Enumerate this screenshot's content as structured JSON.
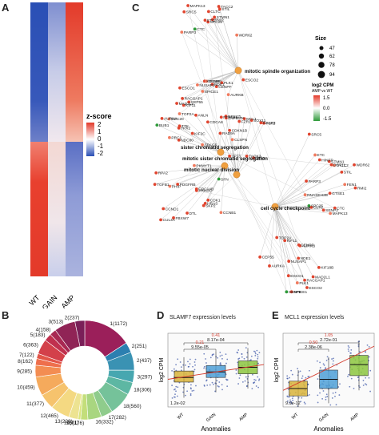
{
  "panels": {
    "A": "A",
    "B": "B",
    "C": "C",
    "D": "D",
    "E": "E"
  },
  "colors": {
    "high": "#e8392b",
    "low": "#2a4fb5",
    "mid": "#ffffff",
    "box_wt": "#d8b33a",
    "box_gain": "#4e9fd6",
    "box_amp": "#8cc63e",
    "trend": "#d33a2c",
    "node_edge": "#cccccc",
    "gene_node": "#e05a3c",
    "hub_node": "#f0a040"
  },
  "chart_data": [
    {
      "panel": "A",
      "type": "heatmap",
      "columns": [
        "WT",
        "GAIN",
        "AMP"
      ],
      "legend_title": "z-score",
      "legend_ticks": [
        "2",
        "1",
        "0",
        "-1",
        "-2"
      ],
      "upper_block": [
        "low",
        "mid",
        "high"
      ],
      "lower_block": [
        "high",
        "mid",
        "low"
      ]
    },
    {
      "panel": "B",
      "type": "pie",
      "labels": [
        "1(1172)",
        "2(251)",
        "2(437)",
        "3(297)",
        "18(306)",
        "18(560)",
        "17(282)",
        "16(332)",
        "15(176)",
        "14(61)",
        "13(228)",
        "12(465)",
        "11(377)",
        "10(459)",
        "9(285)",
        "8(162)",
        "7(122)",
        "6(363)",
        "5(183)",
        "4(158)",
        "3(513)",
        "2(237)"
      ],
      "values": [
        1172,
        251,
        437,
        297,
        306,
        560,
        282,
        332,
        176,
        61,
        228,
        465,
        377,
        459,
        285,
        162,
        122,
        363,
        183,
        158,
        513,
        237
      ]
    },
    {
      "panel": "C",
      "type": "network",
      "hubs": [
        "mitotic spindle organization",
        "sister chromatid segregation",
        "mitotic sister chromatid segregation",
        "mitotic nuclear division",
        "cell cycle checkpoint"
      ],
      "size_legend_title": "Size",
      "size_legend": [
        "47",
        "62",
        "78",
        "94",
        "109"
      ],
      "color_legend_title": "log2 CPM",
      "color_legend_sub": "AMP vs WT",
      "color_legend_ticks": [
        "1.5",
        "0.0",
        "-1.5"
      ],
      "gene_labels": [
        "SPC25",
        "SRC5",
        "ETC",
        "PARP3",
        "STMN1",
        "CTC",
        "TACC2",
        "CLTC",
        "STIL",
        "RMI2",
        "MAPK13",
        "WDR62",
        "ESCO1",
        "ESCO2",
        "SPICE1",
        "PLK1",
        "KIF11",
        "KIF18B",
        "NDE1",
        "RACGAP1",
        "NUSAP1",
        "MAD2L1",
        "CEP55",
        "CENPE",
        "CENPF",
        "AURKB",
        "AURKA",
        "TOP2A",
        "BUB1",
        "KIF2C",
        "CDCA8",
        "TPX2",
        "NDC80",
        "TTK",
        "CDC20",
        "ANLN",
        "PRC1",
        "SPAG5",
        "CCNB1",
        "CDK1",
        "PKMYT1",
        "PDGFRB",
        "PHIP",
        "SKP2",
        "FBXW7",
        "TGFB1",
        "CDC14B",
        "CUL4A",
        "DTL",
        "PRKDC",
        "CCND1",
        "SFN",
        "RPA2",
        "HRAS",
        "TP53",
        "TP73",
        "ZNF385A",
        "PTPN11",
        "TAOK3",
        "PLK2",
        "MCL1",
        "CLSPN",
        "RAD9A",
        "CDKN1B",
        "CASP2",
        "RPS27L",
        "SOX11",
        "FZR1",
        "DOT1L",
        "RNASEH2B",
        "GTSE1",
        "SENP2",
        "FEN1",
        "HINFP"
      ]
    },
    {
      "panel": "D",
      "type": "box",
      "title": "SLAMF7 expression levels",
      "ylabel": "log2 CPM",
      "xlabel": "Anomalies",
      "categories": [
        "WT",
        "GAIN",
        "AMP"
      ],
      "stats": [
        {
          "q1": 4.7,
          "median": 5.2,
          "q3": 5.9,
          "min": 3.0,
          "max": 7.4
        },
        {
          "q1": 5.2,
          "median": 5.8,
          "q3": 6.5,
          "min": 3.6,
          "max": 8.0
        },
        {
          "q1": 5.6,
          "median": 6.3,
          "q3": 7.0,
          "min": 4.0,
          "max": 8.4
        }
      ],
      "ylim": [
        2,
        10
      ],
      "annotations": [
        "0.41",
        "8.17e-04",
        "0.21",
        "9.55e-05",
        "1.2e-02"
      ],
      "trend": [
        5.0,
        6.6
      ]
    },
    {
      "panel": "E",
      "type": "box",
      "title": "MCL1 expression levels",
      "ylabel": "log2 CPM",
      "xlabel": "Anomalies",
      "subtitle": "(WT = 2n; GAIN = 3n; AMP >= 4n)",
      "categories": [
        "WT",
        "GAIN",
        "AMP"
      ],
      "stats": [
        {
          "q1": 6.6,
          "median": 7.0,
          "q3": 7.4,
          "min": 6.0,
          "max": 8.0
        },
        {
          "q1": 7.0,
          "median": 7.5,
          "q3": 8.0,
          "min": 6.2,
          "max": 8.7
        },
        {
          "q1": 7.7,
          "median": 8.3,
          "q3": 8.8,
          "min": 6.9,
          "max": 9.6
        }
      ],
      "ylim": [
        6,
        10
      ],
      "annotations": [
        "1.05",
        "2.72e-01",
        "0.50",
        "2.38e-06",
        "9.9e-12"
      ],
      "trend": [
        6.9,
        9.3
      ]
    }
  ]
}
